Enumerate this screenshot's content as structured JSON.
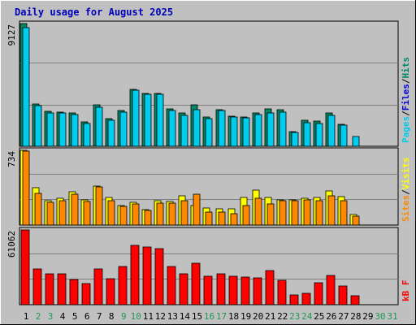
{
  "title": "Daily usage for August 2025",
  "colors": {
    "background": "#C0C0C0",
    "title": "#0000BB",
    "hits": "#008866",
    "files": "#0000DD",
    "pages": "#00CCEE",
    "visits": "#FFFF00",
    "sites": "#FF8800",
    "kbytes": "#FF0000",
    "weekday_label": "#000000",
    "weekend_label": "#229955",
    "grid": "#808080"
  },
  "chart_data": [
    {
      "type": "bar",
      "panel": "hits-files-pages",
      "ymax_label": "9127",
      "ylim": [
        0,
        9127
      ],
      "legend": {
        "items": [
          "Pages",
          "Files",
          "Hits"
        ],
        "separator": "/"
      },
      "categories": [
        "1",
        "2",
        "3",
        "4",
        "5",
        "6",
        "7",
        "8",
        "9",
        "10",
        "11",
        "12",
        "13",
        "14",
        "15",
        "16",
        "17",
        "18",
        "19",
        "20",
        "21",
        "22",
        "23",
        "24",
        "25",
        "26",
        "27",
        "28",
        "29",
        "30",
        "31"
      ],
      "weekend_days": [
        "2",
        "3",
        "9",
        "10",
        "16",
        "17",
        "23",
        "24",
        "30",
        "31"
      ],
      "series": [
        {
          "name": "Hits",
          "values": [
            9127,
            3150,
            2600,
            2550,
            2500,
            1800,
            3100,
            2050,
            2650,
            4250,
            3950,
            3900,
            2800,
            2500,
            3100,
            2150,
            2750,
            2250,
            2200,
            2450,
            2800,
            2700,
            1100,
            1950,
            1850,
            2450,
            1650,
            null,
            null,
            null,
            null
          ]
        },
        {
          "name": "Files",
          "values": [
            null,
            null,
            null,
            null,
            null,
            null,
            null,
            null,
            null,
            null,
            null,
            null,
            null,
            null,
            null,
            null,
            null,
            null,
            null,
            null,
            null,
            null,
            null,
            null,
            null,
            null,
            null,
            null,
            null,
            null,
            null
          ]
        },
        {
          "name": "Pages",
          "values": [
            8800,
            3050,
            2500,
            2450,
            2350,
            1700,
            2900,
            1950,
            2550,
            4200,
            3850,
            3850,
            2650,
            2300,
            2700,
            2050,
            2650,
            2150,
            2100,
            2350,
            2500,
            2550,
            1000,
            1750,
            1700,
            2300,
            1550,
            700,
            null,
            null,
            null
          ]
        }
      ]
    },
    {
      "type": "bar",
      "panel": "visits-sites",
      "ymax_label": "734",
      "ylim": [
        0,
        734
      ],
      "legend": {
        "items": [
          "Sites",
          "Visits"
        ],
        "separator": "/"
      },
      "categories": [
        "1",
        "2",
        "3",
        "4",
        "5",
        "6",
        "7",
        "8",
        "9",
        "10",
        "11",
        "12",
        "13",
        "14",
        "15",
        "16",
        "17",
        "18",
        "19",
        "20",
        "21",
        "22",
        "23",
        "24",
        "25",
        "26",
        "27",
        "28",
        "29",
        "30",
        "31"
      ],
      "series": [
        {
          "name": "Visits",
          "values": [
            734,
            370,
            240,
            265,
            330,
            245,
            385,
            270,
            195,
            225,
            150,
            240,
            235,
            290,
            190,
            170,
            160,
            160,
            270,
            340,
            270,
            245,
            245,
            260,
            270,
            335,
            280,
            100,
            null,
            null,
            null
          ]
        },
        {
          "name": "Sites",
          "values": [
            724,
            310,
            225,
            240,
            305,
            230,
            375,
            240,
            180,
            210,
            140,
            215,
            215,
            240,
            300,
            130,
            130,
            110,
            190,
            260,
            210,
            240,
            240,
            250,
            240,
            290,
            240,
            90,
            null,
            null,
            null
          ]
        }
      ]
    },
    {
      "type": "bar",
      "panel": "kbytes",
      "ymax_label": "61062",
      "ylim": [
        0,
        61062
      ],
      "legend": {
        "items": [
          "kB",
          "F"
        ],
        "separator": " "
      },
      "categories": [
        "1",
        "2",
        "3",
        "4",
        "5",
        "6",
        "7",
        "8",
        "9",
        "10",
        "11",
        "12",
        "13",
        "14",
        "15",
        "16",
        "17",
        "18",
        "19",
        "20",
        "21",
        "22",
        "23",
        "24",
        "25",
        "26",
        "27",
        "28",
        "29",
        "30",
        "31"
      ],
      "series": [
        {
          "name": "kB F",
          "values": [
            61062,
            29000,
            25500,
            25500,
            20500,
            17500,
            29000,
            21000,
            31000,
            48500,
            47000,
            46000,
            31500,
            25000,
            34000,
            23500,
            25500,
            23500,
            22500,
            22000,
            28000,
            20000,
            8000,
            9000,
            18000,
            24000,
            15000,
            7000,
            null,
            null,
            null
          ]
        }
      ]
    }
  ]
}
